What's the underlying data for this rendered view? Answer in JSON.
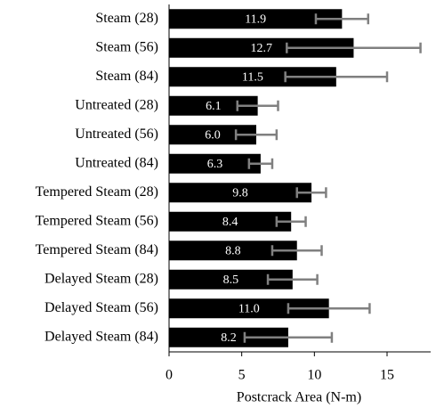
{
  "chart_data": {
    "type": "bar",
    "orientation": "horizontal",
    "categories": [
      "Steam (28)",
      "Steam (56)",
      "Steam (84)",
      "Untreated (28)",
      "Untreated (56)",
      "Untreated (84)",
      "Tempered Steam (28)",
      "Tempered Steam (56)",
      "Tempered Steam (84)",
      "Delayed Steam (28)",
      "Delayed Steam (56)",
      "Delayed Steam (84)"
    ],
    "values": [
      11.9,
      12.7,
      11.5,
      6.1,
      6.0,
      6.3,
      9.8,
      8.4,
      8.8,
      8.5,
      11.0,
      8.2
    ],
    "value_labels": [
      "11.9",
      "12.7",
      "11.5",
      "6.1",
      "6.0",
      "6.3",
      "9.8",
      "8.4",
      "8.8",
      "8.5",
      "11.0",
      "8.2"
    ],
    "errors": [
      1.8,
      4.6,
      3.5,
      1.4,
      1.4,
      0.8,
      1.0,
      1.0,
      1.7,
      1.7,
      2.8,
      3.0
    ],
    "color": "#000000",
    "error_color": "#808080",
    "x_label": "Postcrack Area (N-m)",
    "xlim": [
      0,
      18
    ],
    "xticks": [
      0,
      5,
      10,
      15
    ]
  }
}
